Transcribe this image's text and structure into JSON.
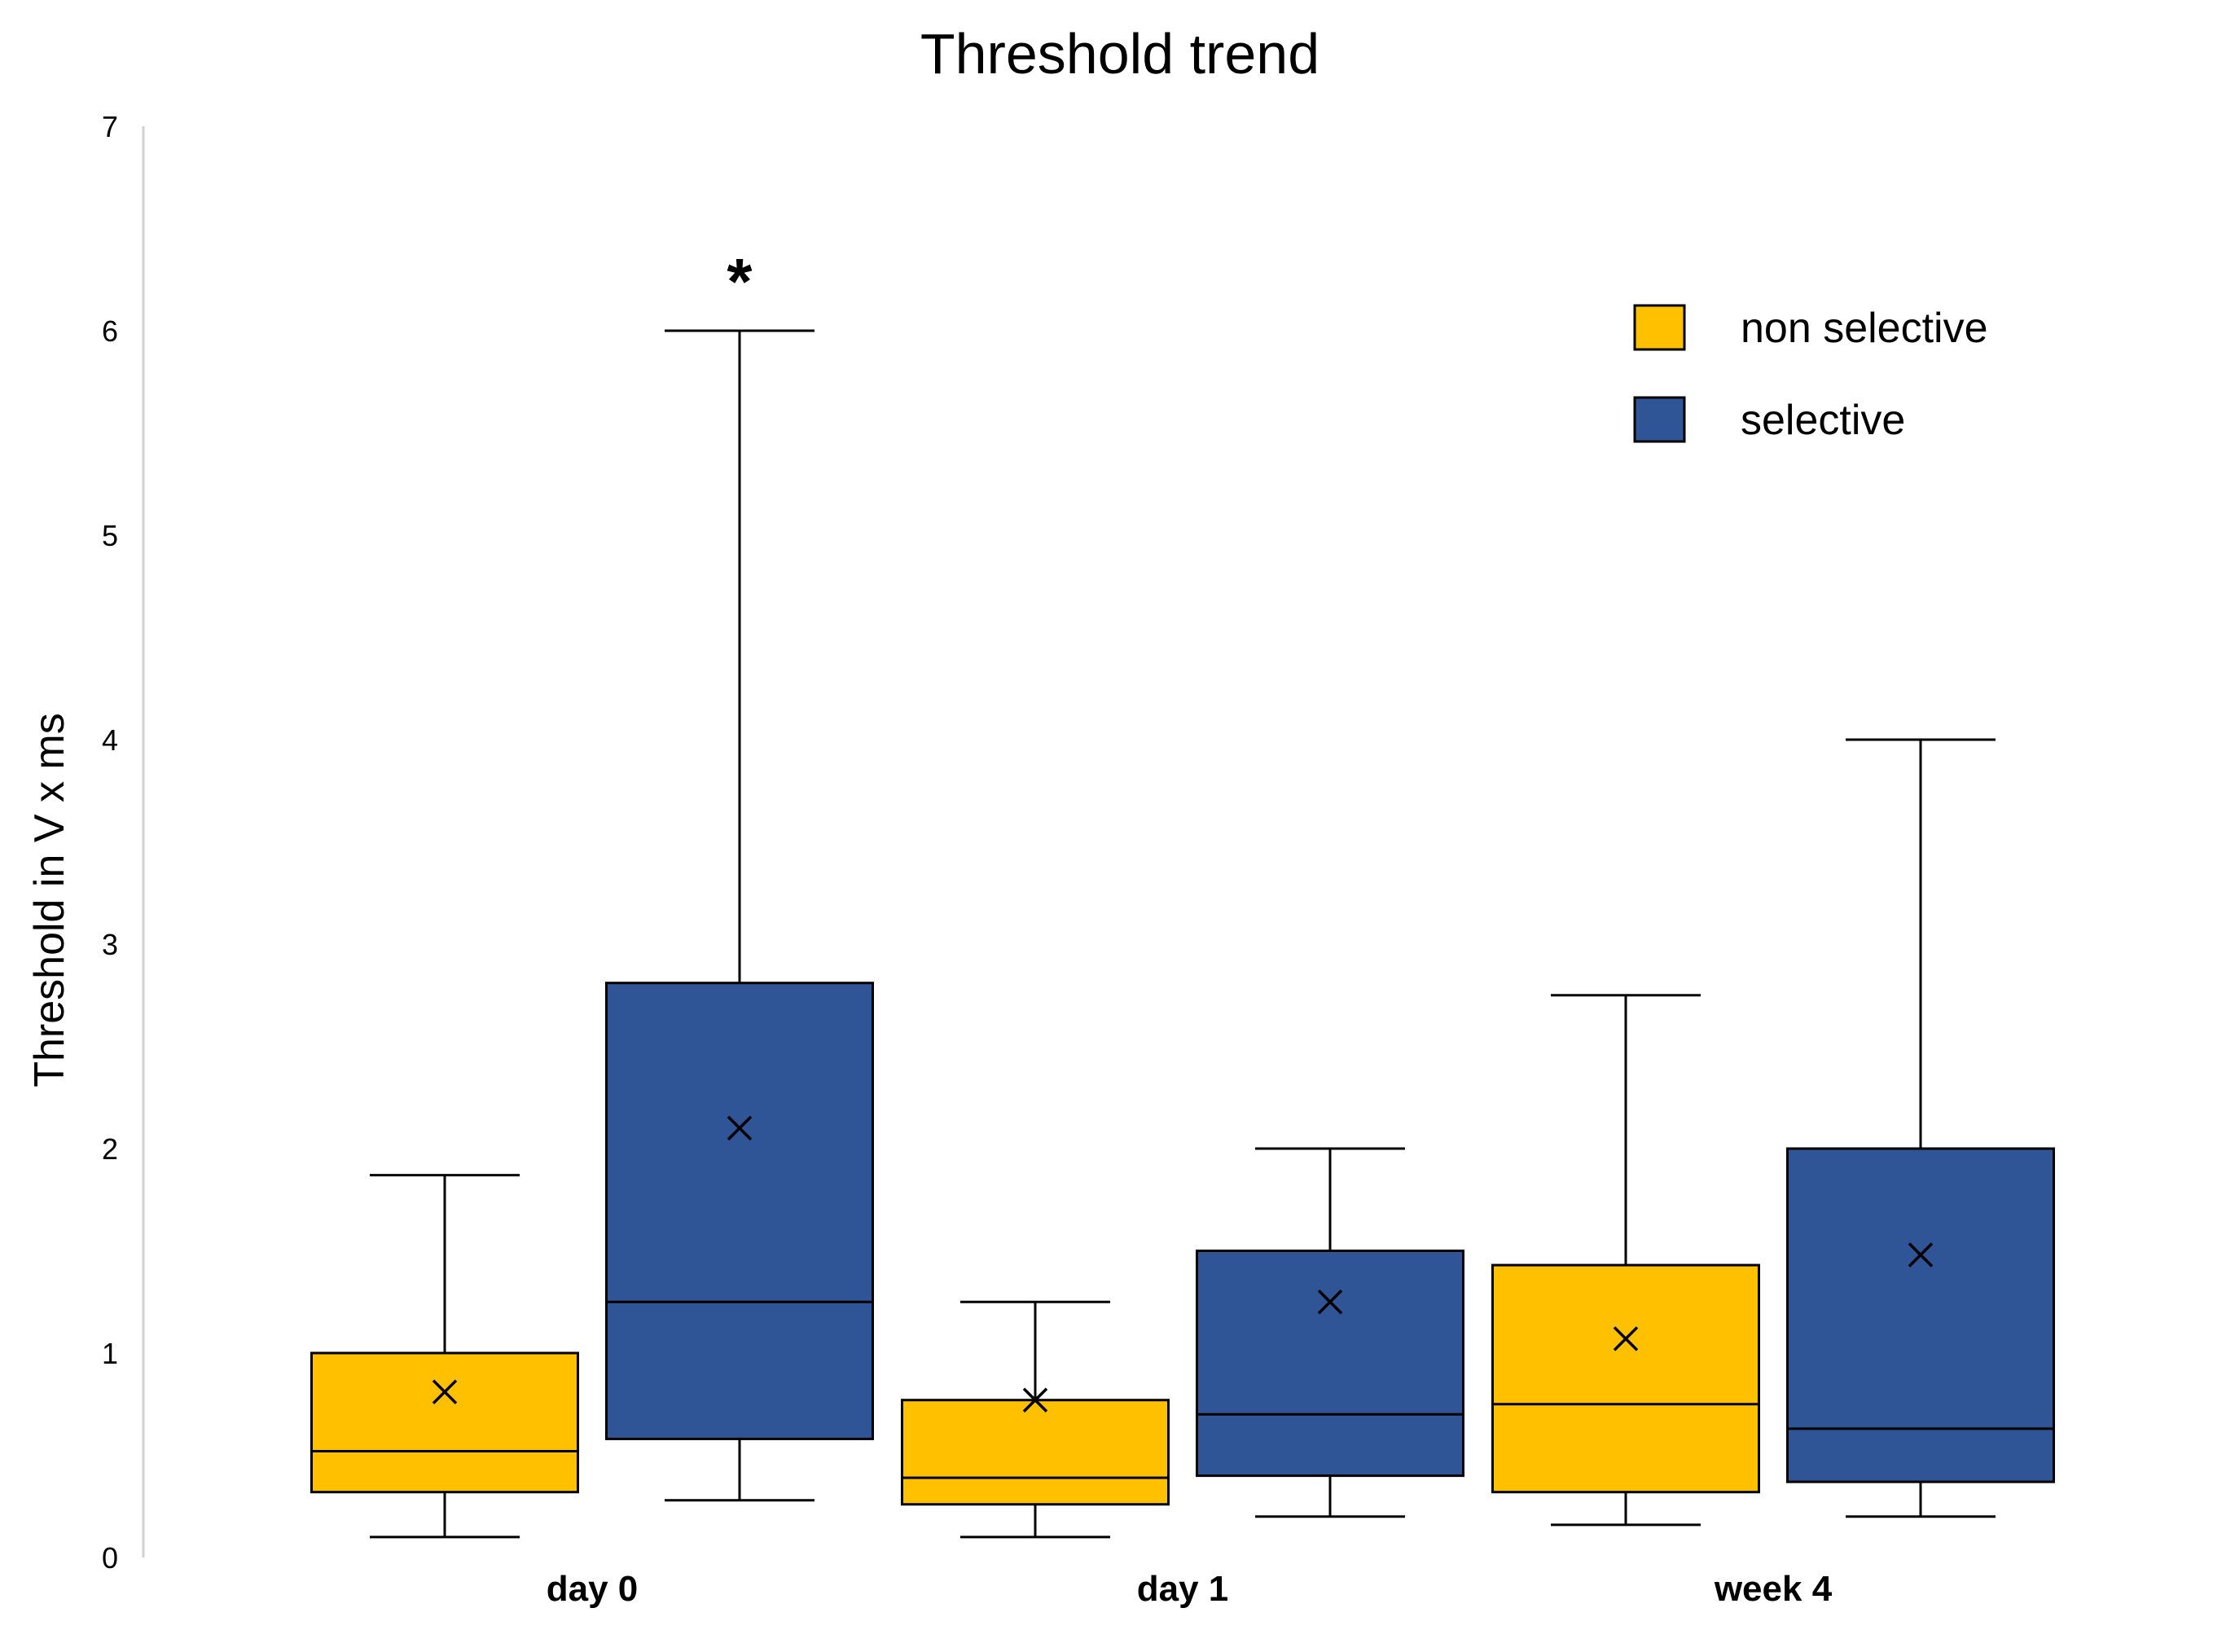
{
  "chart_data": {
    "type": "box",
    "title": "Threshold trend",
    "xlabel": "",
    "ylabel": "Threshold in V x ms",
    "ylim": [
      0,
      7
    ],
    "yticks": [
      "0",
      "1",
      "2",
      "3",
      "4",
      "5",
      "6",
      "7"
    ],
    "categories": [
      "day 0",
      "day 1",
      "week 4"
    ],
    "grid": false,
    "legend_position": "top-right",
    "series": [
      {
        "name": "non selective",
        "color": "#FFC000",
        "boxes": [
          {
            "min": 0.1,
            "q1": 0.32,
            "median": 0.52,
            "q3": 1.0,
            "max": 1.87,
            "mean": 0.81
          },
          {
            "min": 0.1,
            "q1": 0.26,
            "median": 0.39,
            "q3": 0.77,
            "max": 1.25,
            "mean": 0.77
          },
          {
            "min": 0.16,
            "q1": 0.32,
            "median": 0.75,
            "q3": 1.43,
            "max": 2.75,
            "mean": 1.07
          }
        ]
      },
      {
        "name": "selective",
        "color": "#2F5597",
        "boxes": [
          {
            "min": 0.28,
            "q1": 0.58,
            "median": 1.25,
            "q3": 2.81,
            "max": 6.0,
            "mean": 2.1
          },
          {
            "min": 0.2,
            "q1": 0.4,
            "median": 0.7,
            "q3": 1.5,
            "max": 2.0,
            "mean": 1.25
          },
          {
            "min": 0.2,
            "q1": 0.37,
            "median": 0.63,
            "q3": 2.0,
            "max": 4.0,
            "mean": 1.48
          }
        ]
      }
    ],
    "annotations": [
      {
        "text": "*",
        "category_index": 0,
        "series_index": 1,
        "y": 6.35
      }
    ]
  }
}
